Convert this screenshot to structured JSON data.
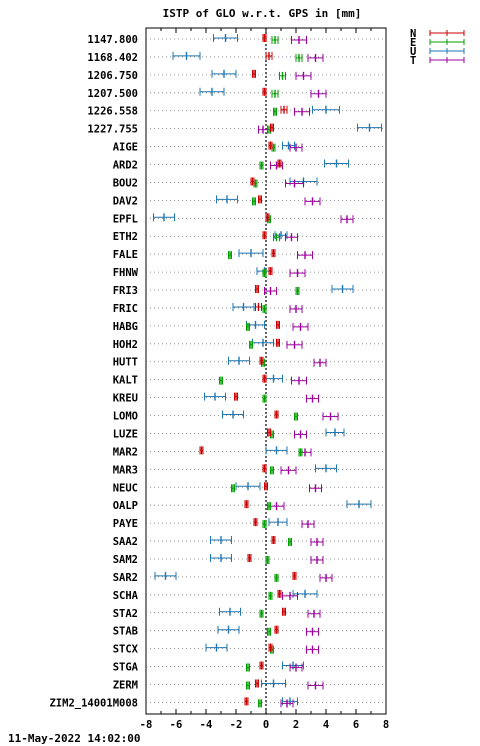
{
  "chart_data": {
    "type": "scatter",
    "title": "ISTP of GLO w.r.t. GPS in [mm]",
    "xlim": [
      -8,
      8
    ],
    "xticks": [
      "-8",
      "-6",
      "-4",
      "-2",
      "0",
      "2",
      "4",
      "6",
      "8"
    ],
    "xtick_values": [
      -8,
      -6,
      -4,
      -2,
      0,
      2,
      4,
      6,
      8
    ],
    "grid": "dotted horizontal per station, dotted vertical at 0",
    "legend_position": "top-right, outside plot",
    "footer": "11-May-2022 14:02:00",
    "series": [
      {
        "name": "N",
        "color": "#cc0000"
      },
      {
        "name": "E",
        "color": "#00a000"
      },
      {
        "name": "U",
        "color": "#1f77b4"
      },
      {
        "name": "T",
        "color": "#a000a0"
      }
    ],
    "stations": [
      {
        "label": "1147.800",
        "N": [
          -0.1,
          0.1
        ],
        "E": [
          0.6,
          0.2
        ],
        "U": [
          -2.7,
          0.8
        ],
        "T": [
          2.2,
          0.5
        ]
      },
      {
        "label": "1168.402",
        "N": [
          0.2,
          0.2
        ],
        "E": [
          2.2,
          0.2
        ],
        "U": [
          -5.3,
          0.9
        ],
        "T": [
          3.3,
          0.5
        ]
      },
      {
        "label": "1206.750",
        "N": [
          -0.8,
          0.1
        ],
        "E": [
          1.1,
          0.2
        ],
        "U": [
          -2.8,
          0.8
        ],
        "T": [
          2.5,
          0.5
        ]
      },
      {
        "label": "1207.500",
        "N": [
          -0.1,
          0.1
        ],
        "E": [
          0.6,
          0.2
        ],
        "U": [
          -3.6,
          0.8
        ],
        "T": [
          3.5,
          0.5
        ]
      },
      {
        "label": "1226.558",
        "N": [
          1.2,
          0.2
        ],
        "E": [
          0.6,
          0.1
        ],
        "U": [
          4.0,
          0.9
        ],
        "T": [
          2.4,
          0.5
        ]
      },
      {
        "label": "1227.755",
        "N": [
          0.4,
          0.1
        ],
        "E": [
          0.2,
          0.1
        ],
        "U": [
          6.9,
          0.8
        ],
        "T": [
          -0.2,
          0.3
        ]
      },
      {
        "label": "AIGE",
        "N": [
          0.3,
          0.1
        ],
        "E": [
          0.5,
          0.1
        ],
        "U": [
          1.5,
          0.4
        ],
        "T": [
          2.0,
          0.4
        ]
      },
      {
        "label": "ARD2",
        "N": [
          0.9,
          0.1
        ],
        "E": [
          -0.3,
          0.1
        ],
        "U": [
          4.7,
          0.8
        ],
        "T": [
          0.7,
          0.4
        ]
      },
      {
        "label": "BOU2",
        "N": [
          -0.9,
          0.1
        ],
        "E": [
          -0.7,
          0.1
        ],
        "U": [
          2.5,
          0.9
        ],
        "T": [
          1.9,
          0.6
        ]
      },
      {
        "label": "DAV2",
        "N": [
          -0.4,
          0.1
        ],
        "E": [
          -0.8,
          0.1
        ],
        "U": [
          -2.6,
          0.7
        ],
        "T": [
          3.1,
          0.5
        ]
      },
      {
        "label": "EPFL",
        "N": [
          0.1,
          0.1
        ],
        "E": [
          0.2,
          0.1
        ],
        "U": [
          -6.8,
          0.7
        ],
        "T": [
          5.4,
          0.4
        ]
      },
      {
        "label": "ETH2",
        "N": [
          -0.1,
          0.1
        ],
        "E": [
          0.7,
          0.2
        ],
        "U": [
          1.0,
          0.4
        ],
        "T": [
          1.7,
          0.4
        ]
      },
      {
        "label": "FALE",
        "N": [
          0.5,
          0.1
        ],
        "E": [
          -2.4,
          0.1
        ],
        "U": [
          -1.0,
          0.8
        ],
        "T": [
          2.6,
          0.5
        ]
      },
      {
        "label": "FHNW",
        "N": [
          0.3,
          0.1
        ],
        "E": [
          -0.1,
          0.1
        ],
        "U": [
          -0.1,
          0.5
        ],
        "T": [
          2.1,
          0.5
        ]
      },
      {
        "label": "FRI3",
        "N": [
          -0.6,
          0.1
        ],
        "E": [
          2.1,
          0.1
        ],
        "U": [
          5.1,
          0.7
        ],
        "T": [
          0.3,
          0.4
        ]
      },
      {
        "label": "FRIC",
        "N": [
          -0.5,
          0.2
        ],
        "E": [
          -0.1,
          0.1
        ],
        "U": [
          -1.5,
          0.7
        ],
        "T": [
          2.0,
          0.4
        ]
      },
      {
        "label": "HABG",
        "N": [
          0.8,
          0.1
        ],
        "E": [
          -1.2,
          0.1
        ],
        "U": [
          -0.7,
          0.6
        ],
        "T": [
          2.3,
          0.5
        ]
      },
      {
        "label": "HOH2",
        "N": [
          0.8,
          0.1
        ],
        "E": [
          -1.0,
          0.1
        ],
        "U": [
          -0.2,
          0.7
        ],
        "T": [
          1.9,
          0.5
        ]
      },
      {
        "label": "HUTT",
        "N": [
          -0.3,
          0.1
        ],
        "E": [
          -0.2,
          0.1
        ],
        "U": [
          -1.8,
          0.7
        ],
        "T": [
          3.6,
          0.4
        ]
      },
      {
        "label": "KALT",
        "N": [
          -0.1,
          0.1
        ],
        "E": [
          -3.0,
          0.1
        ],
        "U": [
          0.5,
          0.6
        ],
        "T": [
          2.2,
          0.5
        ]
      },
      {
        "label": "KREU",
        "N": [
          -2.0,
          0.1
        ],
        "E": [
          -0.1,
          0.1
        ],
        "U": [
          -3.4,
          0.7
        ],
        "T": [
          3.1,
          0.4
        ]
      },
      {
        "label": "LOMO",
        "N": [
          0.7,
          0.1
        ],
        "E": [
          2.0,
          0.1
        ],
        "U": [
          -2.2,
          0.7
        ],
        "T": [
          4.3,
          0.5
        ]
      },
      {
        "label": "LUZE",
        "N": [
          0.2,
          0.1
        ],
        "E": [
          0.4,
          0.1
        ],
        "U": [
          4.6,
          0.6
        ],
        "T": [
          2.3,
          0.4
        ]
      },
      {
        "label": "MAR2",
        "N": [
          -4.3,
          0.1
        ],
        "E": [
          2.3,
          0.1
        ],
        "U": [
          0.7,
          0.7
        ],
        "T": [
          2.6,
          0.4
        ]
      },
      {
        "label": "MAR3",
        "N": [
          -0.1,
          0.1
        ],
        "E": [
          0.4,
          0.1
        ],
        "U": [
          4.0,
          0.7
        ],
        "T": [
          1.5,
          0.5
        ]
      },
      {
        "label": "NEUC",
        "N": [
          0.0,
          0.1
        ],
        "E": [
          -2.2,
          0.1
        ],
        "U": [
          -1.2,
          0.8
        ],
        "T": [
          3.3,
          0.4
        ]
      },
      {
        "label": "OALP",
        "N": [
          -1.3,
          0.1
        ],
        "E": [
          0.2,
          0.1
        ],
        "U": [
          6.2,
          0.8
        ],
        "T": [
          0.7,
          0.5
        ]
      },
      {
        "label": "PAYE",
        "N": [
          -0.7,
          0.1
        ],
        "E": [
          -0.1,
          0.1
        ],
        "U": [
          0.8,
          0.6
        ],
        "T": [
          2.8,
          0.4
        ]
      },
      {
        "label": "SAA2",
        "N": [
          0.5,
          0.1
        ],
        "E": [
          1.6,
          0.1
        ],
        "U": [
          -3.0,
          0.7
        ],
        "T": [
          3.4,
          0.4
        ]
      },
      {
        "label": "SAM2",
        "N": [
          -1.1,
          0.1
        ],
        "E": [
          0.1,
          0.1
        ],
        "U": [
          -3.0,
          0.7
        ],
        "T": [
          3.4,
          0.4
        ]
      },
      {
        "label": "SAR2",
        "N": [
          1.9,
          0.1
        ],
        "E": [
          0.7,
          0.1
        ],
        "U": [
          -6.7,
          0.7
        ],
        "T": [
          4.0,
          0.4
        ]
      },
      {
        "label": "SCHA",
        "N": [
          0.9,
          0.1
        ],
        "E": [
          0.3,
          0.1
        ],
        "U": [
          2.6,
          0.8
        ],
        "T": [
          1.6,
          0.5
        ]
      },
      {
        "label": "STA2",
        "N": [
          1.2,
          0.1
        ],
        "E": [
          -0.3,
          0.1
        ],
        "U": [
          -2.4,
          0.7
        ],
        "T": [
          3.2,
          0.4
        ]
      },
      {
        "label": "STAB",
        "N": [
          0.7,
          0.1
        ],
        "E": [
          0.2,
          0.1
        ],
        "U": [
          -2.5,
          0.7
        ],
        "T": [
          3.1,
          0.4
        ]
      },
      {
        "label": "STCX",
        "N": [
          0.3,
          0.1
        ],
        "E": [
          0.4,
          0.1
        ],
        "U": [
          -3.3,
          0.7
        ],
        "T": [
          3.1,
          0.4
        ]
      },
      {
        "label": "STGA",
        "N": [
          -0.3,
          0.1
        ],
        "E": [
          -1.2,
          0.1
        ],
        "U": [
          1.8,
          0.7
        ],
        "T": [
          2.0,
          0.4
        ]
      },
      {
        "label": "ZERM",
        "N": [
          -0.6,
          0.1
        ],
        "E": [
          -1.2,
          0.1
        ],
        "U": [
          0.5,
          0.8
        ],
        "T": [
          3.3,
          0.5
        ]
      },
      {
        "label": "ZIM2_14001M008",
        "N": [
          -1.3,
          0.1
        ],
        "E": [
          -0.4,
          0.1
        ],
        "U": [
          1.6,
          0.5
        ],
        "T": [
          1.4,
          0.4
        ]
      }
    ]
  }
}
